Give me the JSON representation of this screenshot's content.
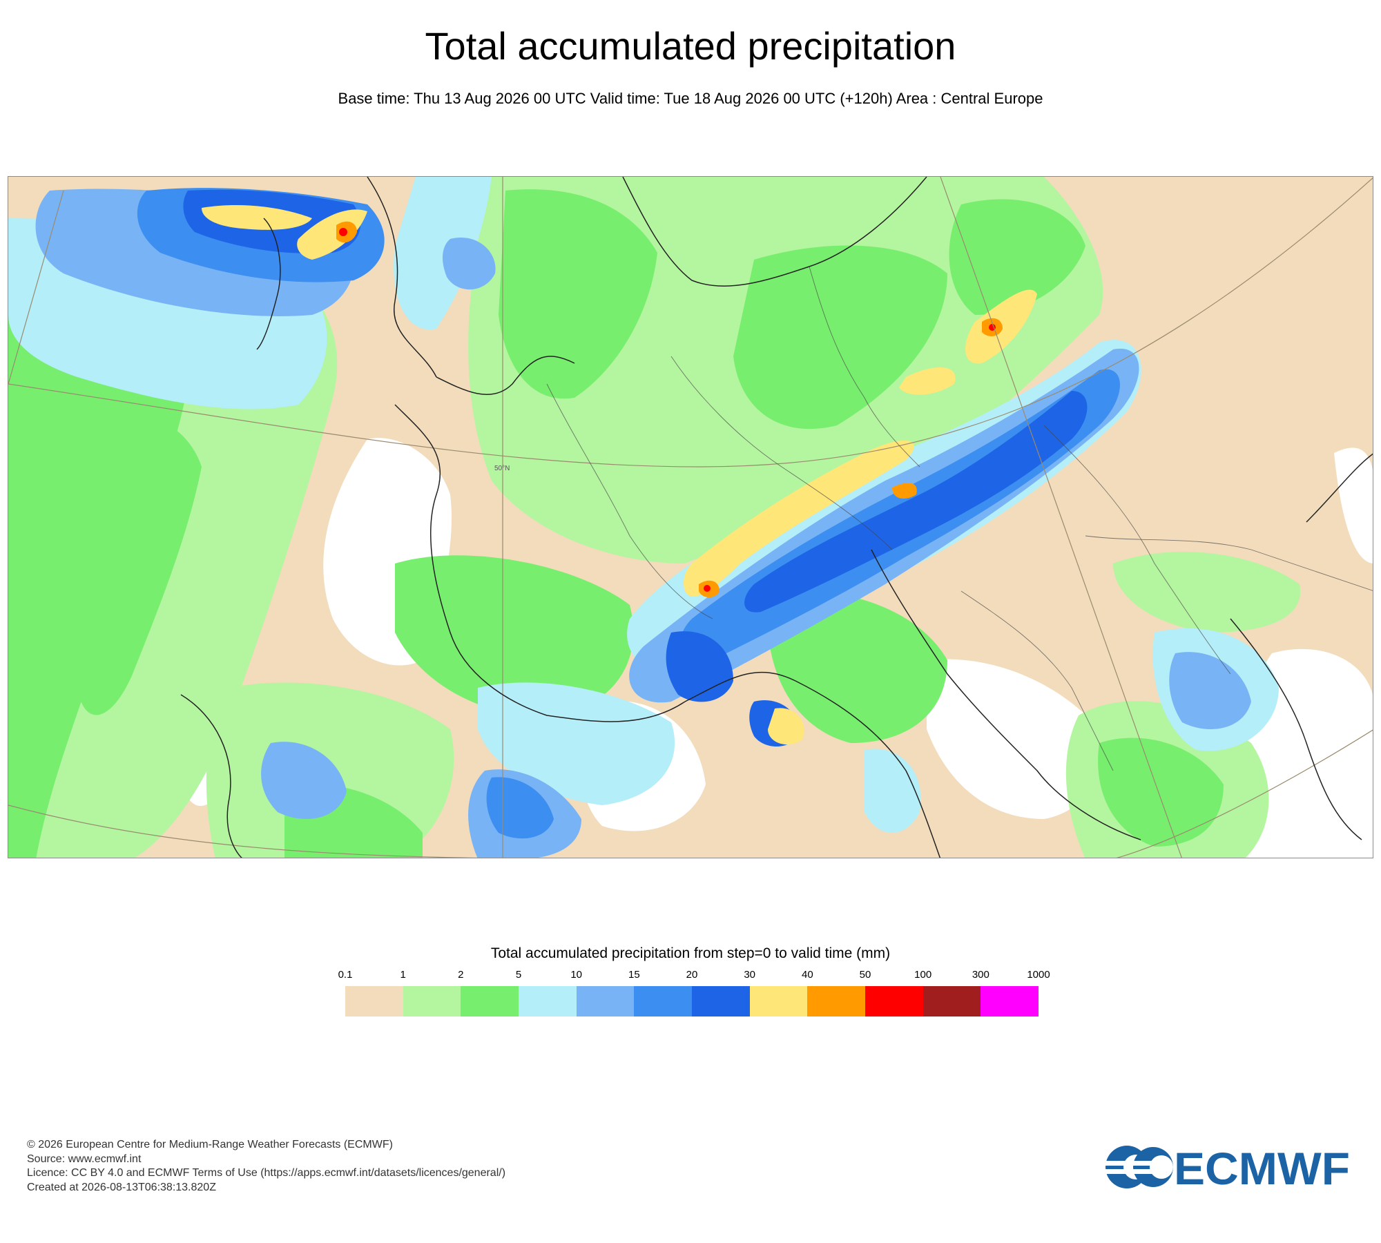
{
  "header": {
    "title": "Total accumulated precipitation",
    "subtitle": "Base time: Thu 13 Aug 2026 00 UTC Valid time: Tue 18 Aug 2026 00 UTC (+120h) Area : Central Europe"
  },
  "map": {
    "area": "Central Europe",
    "grid_label": "50°N"
  },
  "legend": {
    "title": "Total accumulated precipitation from step=0 to valid time (mm)",
    "ticks": [
      "0.1",
      "1",
      "2",
      "5",
      "10",
      "15",
      "20",
      "30",
      "40",
      "50",
      "100",
      "300",
      "1000"
    ],
    "colors": [
      "#f2dcbc",
      "#b4f5a0",
      "#78ee6e",
      "#b4eef8",
      "#78b4f5",
      "#3c8ef0",
      "#1e64e6",
      "#ffe678",
      "#ff9b00",
      "#ff0000",
      "#a01e1e",
      "#ff00ff"
    ]
  },
  "footer": {
    "copyright": "© 2026 European Centre for Medium-Range Weather Forecasts (ECMWF)",
    "source": "Source: www.ecmwf.int",
    "licence": "Licence: CC BY 4.0 and ECMWF Terms of Use (https://apps.ecmwf.int/datasets/licences/general/)",
    "created": "Created at 2026-08-13T06:38:13.820Z"
  },
  "logo": {
    "text": "ECMWF",
    "color": "#1b63a5"
  }
}
